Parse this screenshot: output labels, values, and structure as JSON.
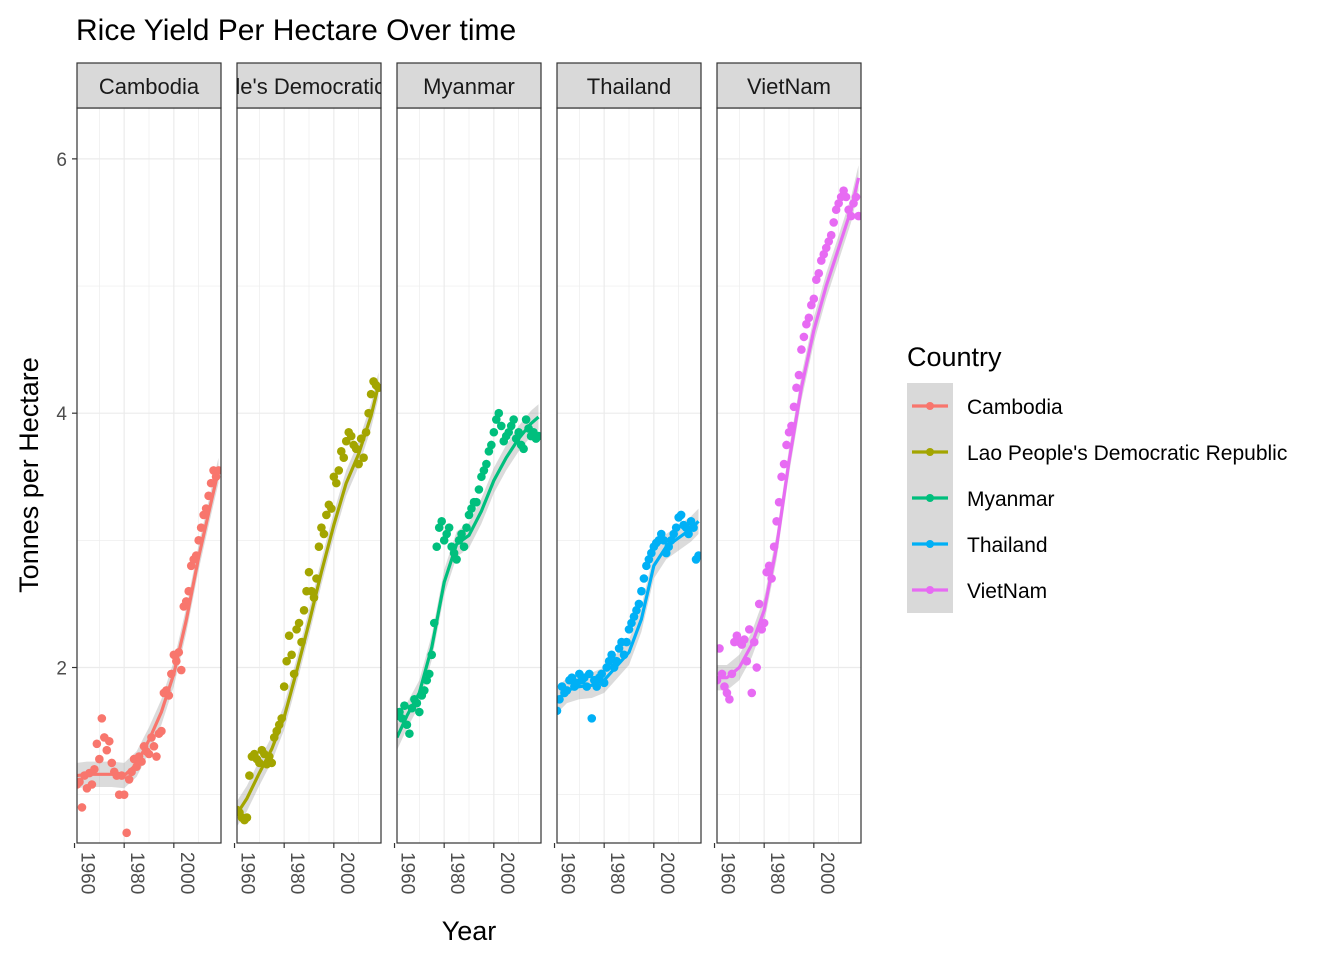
{
  "chart_data": {
    "type": "scatter",
    "title": "Rice Yield Per Hectare Over time",
    "xlabel": "Year",
    "ylabel": "Tonnes per Hectare",
    "xlim": [
      1961,
      2019
    ],
    "ylim": [
      0.62,
      6.4
    ],
    "x_ticks": [
      1960,
      1980,
      2000
    ],
    "y_ticks": [
      2,
      4,
      6
    ],
    "x_tick_labels": [
      "1960",
      "1980",
      "2000"
    ],
    "y_tick_labels": [
      "2",
      "4",
      "6"
    ],
    "legend_title": "Country",
    "legend_position": "right",
    "facet_labels": [
      "Cambodia",
      "Lao People's Democratic Republic",
      "Myanmar",
      "Thailand",
      "VietNam"
    ],
    "trend": "loess smooth with grey confidence band",
    "grid": true,
    "series": [
      {
        "name": "Cambodia",
        "color": "#F8766D",
        "x": [
          1961,
          1962,
          1963,
          1964,
          1965,
          1966,
          1967,
          1968,
          1969,
          1970,
          1971,
          1972,
          1973,
          1974,
          1975,
          1976,
          1977,
          1978,
          1979,
          1980,
          1981,
          1982,
          1983,
          1984,
          1985,
          1986,
          1987,
          1988,
          1989,
          1990,
          1991,
          1992,
          1993,
          1994,
          1995,
          1996,
          1997,
          1998,
          1999,
          2000,
          2001,
          2002,
          2003,
          2004,
          2005,
          2006,
          2007,
          2008,
          2009,
          2010,
          2011,
          2012,
          2013,
          2014,
          2015,
          2016,
          2017,
          2018
        ],
        "y": [
          1.08,
          1.1,
          0.9,
          1.15,
          1.05,
          1.17,
          1.08,
          1.2,
          1.4,
          1.28,
          1.6,
          1.45,
          1.35,
          1.42,
          1.25,
          1.18,
          1.15,
          1.0,
          1.15,
          1.0,
          0.7,
          1.12,
          1.18,
          1.28,
          1.22,
          1.3,
          1.26,
          1.38,
          1.34,
          1.32,
          1.45,
          1.38,
          1.3,
          1.48,
          1.5,
          1.8,
          1.82,
          1.78,
          1.95,
          2.1,
          2.05,
          2.12,
          1.98,
          2.48,
          2.52,
          2.6,
          2.8,
          2.85,
          2.88,
          3.0,
          3.1,
          3.2,
          3.25,
          3.35,
          3.45,
          3.55,
          3.5,
          3.55
        ],
        "smooth": [
          [
            1961,
            1.15
          ],
          [
            1965,
            1.16
          ],
          [
            1970,
            1.16
          ],
          [
            1975,
            1.16
          ],
          [
            1980,
            1.15
          ],
          [
            1985,
            1.24
          ],
          [
            1990,
            1.43
          ],
          [
            1995,
            1.65
          ],
          [
            2000,
            1.95
          ],
          [
            2005,
            2.37
          ],
          [
            2010,
            2.87
          ],
          [
            2015,
            3.3
          ],
          [
            2018,
            3.55
          ]
        ]
      },
      {
        "name": "Lao People's Democratic Republic",
        "color": "#A3A500",
        "x": [
          1961,
          1962,
          1963,
          1964,
          1965,
          1966,
          1967,
          1968,
          1969,
          1970,
          1971,
          1972,
          1973,
          1974,
          1975,
          1976,
          1977,
          1978,
          1979,
          1980,
          1981,
          1982,
          1983,
          1984,
          1985,
          1986,
          1987,
          1988,
          1989,
          1990,
          1991,
          1992,
          1993,
          1994,
          1995,
          1996,
          1997,
          1998,
          1999,
          2000,
          2001,
          2002,
          2003,
          2004,
          2005,
          2006,
          2007,
          2008,
          2009,
          2010,
          2011,
          2012,
          2013,
          2014,
          2015,
          2016,
          2017,
          2018
        ],
        "y": [
          0.88,
          0.86,
          0.82,
          0.8,
          0.82,
          1.15,
          1.3,
          1.32,
          1.28,
          1.25,
          1.35,
          1.32,
          1.24,
          1.3,
          1.25,
          1.45,
          1.5,
          1.55,
          1.6,
          1.85,
          2.05,
          2.25,
          2.1,
          1.95,
          2.3,
          2.35,
          2.2,
          2.45,
          2.6,
          2.75,
          2.6,
          2.55,
          2.7,
          2.95,
          3.1,
          3.05,
          3.2,
          3.28,
          3.25,
          3.5,
          3.45,
          3.55,
          3.7,
          3.65,
          3.78,
          3.85,
          3.82,
          3.75,
          3.72,
          3.6,
          3.8,
          3.65,
          3.85,
          4.0,
          4.15,
          4.25,
          4.22,
          4.2
        ],
        "smooth": [
          [
            1961,
            0.85
          ],
          [
            1965,
            0.97
          ],
          [
            1970,
            1.17
          ],
          [
            1975,
            1.36
          ],
          [
            1980,
            1.61
          ],
          [
            1985,
            1.97
          ],
          [
            1990,
            2.35
          ],
          [
            1995,
            2.75
          ],
          [
            2000,
            3.12
          ],
          [
            2005,
            3.45
          ],
          [
            2010,
            3.68
          ],
          [
            2015,
            3.98
          ],
          [
            2018,
            4.22
          ]
        ]
      },
      {
        "name": "Myanmar",
        "color": "#00BF7D",
        "x": [
          1961,
          1962,
          1963,
          1964,
          1965,
          1966,
          1967,
          1968,
          1969,
          1970,
          1971,
          1972,
          1973,
          1974,
          1975,
          1976,
          1977,
          1978,
          1979,
          1980,
          1981,
          1982,
          1983,
          1984,
          1985,
          1986,
          1987,
          1988,
          1989,
          1990,
          1991,
          1992,
          1993,
          1994,
          1995,
          1996,
          1997,
          1998,
          1999,
          2000,
          2001,
          2002,
          2003,
          2004,
          2005,
          2006,
          2007,
          2008,
          2009,
          2010,
          2011,
          2012,
          2013,
          2014,
          2015,
          2016,
          2017,
          2018
        ],
        "y": [
          1.62,
          1.65,
          1.6,
          1.7,
          1.55,
          1.48,
          1.68,
          1.75,
          1.72,
          1.65,
          1.78,
          1.82,
          1.9,
          1.95,
          2.1,
          2.35,
          2.95,
          3.1,
          3.15,
          3.0,
          3.05,
          3.1,
          2.95,
          2.9,
          2.85,
          3.0,
          3.05,
          2.95,
          3.1,
          3.2,
          3.25,
          3.3,
          3.3,
          3.4,
          3.5,
          3.55,
          3.6,
          3.7,
          3.75,
          3.85,
          3.95,
          4.0,
          3.9,
          3.78,
          3.82,
          3.85,
          3.9,
          3.95,
          3.8,
          3.85,
          3.75,
          3.72,
          3.95,
          3.88,
          3.82,
          3.85,
          3.8,
          3.82
        ],
        "smooth": [
          [
            1961,
            1.45
          ],
          [
            1965,
            1.62
          ],
          [
            1970,
            1.8
          ],
          [
            1975,
            2.16
          ],
          [
            1980,
            2.67
          ],
          [
            1985,
            2.97
          ],
          [
            1990,
            3.04
          ],
          [
            1995,
            3.23
          ],
          [
            2000,
            3.47
          ],
          [
            2005,
            3.65
          ],
          [
            2010,
            3.8
          ],
          [
            2015,
            3.92
          ],
          [
            2018,
            3.97
          ]
        ]
      },
      {
        "name": "Thailand",
        "color": "#00B0F6",
        "x": [
          1961,
          1962,
          1963,
          1964,
          1965,
          1966,
          1967,
          1968,
          1969,
          1970,
          1971,
          1972,
          1973,
          1974,
          1975,
          1976,
          1977,
          1978,
          1979,
          1980,
          1981,
          1982,
          1983,
          1984,
          1985,
          1986,
          1987,
          1988,
          1989,
          1990,
          1991,
          1992,
          1993,
          1994,
          1995,
          1996,
          1997,
          1998,
          1999,
          2000,
          2001,
          2002,
          2003,
          2004,
          2005,
          2006,
          2007,
          2008,
          2009,
          2010,
          2011,
          2012,
          2013,
          2014,
          2015,
          2016,
          2017,
          2018
        ],
        "y": [
          1.66,
          1.75,
          1.85,
          1.8,
          1.82,
          1.9,
          1.92,
          1.85,
          1.88,
          1.95,
          1.9,
          1.92,
          1.85,
          1.95,
          1.6,
          1.9,
          1.85,
          1.92,
          1.95,
          1.88,
          2.0,
          2.05,
          2.1,
          2.0,
          2.05,
          2.15,
          2.2,
          2.1,
          2.2,
          2.3,
          2.35,
          2.4,
          2.45,
          2.5,
          2.6,
          2.7,
          2.8,
          2.85,
          2.9,
          2.95,
          2.98,
          3.0,
          3.05,
          3.0,
          2.9,
          2.95,
          3.0,
          3.05,
          3.1,
          3.18,
          3.2,
          3.12,
          3.1,
          3.05,
          3.15,
          3.1,
          2.85,
          2.88
        ],
        "smooth": [
          [
            1961,
            1.74
          ],
          [
            1965,
            1.82
          ],
          [
            1970,
            1.85
          ],
          [
            1975,
            1.86
          ],
          [
            1980,
            1.9
          ],
          [
            1985,
            2.01
          ],
          [
            1990,
            2.12
          ],
          [
            1995,
            2.38
          ],
          [
            2000,
            2.8
          ],
          [
            2005,
            2.95
          ],
          [
            2010,
            3.02
          ],
          [
            2015,
            3.09
          ],
          [
            2018,
            3.15
          ]
        ]
      },
      {
        "name": "VietNam",
        "color": "#E76BF3",
        "x": [
          1961,
          1962,
          1963,
          1964,
          1965,
          1966,
          1967,
          1968,
          1969,
          1970,
          1971,
          1972,
          1973,
          1974,
          1975,
          1976,
          1977,
          1978,
          1979,
          1980,
          1981,
          1982,
          1983,
          1984,
          1985,
          1986,
          1987,
          1988,
          1989,
          1990,
          1991,
          1992,
          1993,
          1994,
          1995,
          1996,
          1997,
          1998,
          1999,
          2000,
          2001,
          2002,
          2003,
          2004,
          2005,
          2006,
          2007,
          2008,
          2009,
          2010,
          2011,
          2012,
          2013,
          2014,
          2015,
          2016,
          2017,
          2018
        ],
        "y": [
          1.9,
          2.15,
          1.95,
          1.85,
          1.8,
          1.75,
          1.95,
          2.2,
          2.25,
          2.2,
          2.18,
          2.22,
          2.05,
          2.3,
          1.8,
          2.2,
          2.0,
          2.5,
          2.3,
          2.35,
          2.75,
          2.8,
          2.7,
          2.95,
          3.15,
          3.3,
          3.5,
          3.6,
          3.75,
          3.85,
          3.9,
          4.05,
          4.2,
          4.3,
          4.5,
          4.6,
          4.7,
          4.75,
          4.85,
          4.9,
          5.05,
          5.1,
          5.2,
          5.25,
          5.3,
          5.35,
          5.4,
          5.5,
          5.6,
          5.65,
          5.7,
          5.75,
          5.7,
          5.6,
          5.55,
          5.65,
          5.7,
          5.55
        ],
        "smooth": [
          [
            1961,
            1.92
          ],
          [
            1965,
            1.92
          ],
          [
            1970,
            2.0
          ],
          [
            1975,
            2.18
          ],
          [
            1980,
            2.45
          ],
          [
            1985,
            2.95
          ],
          [
            1990,
            3.62
          ],
          [
            1995,
            4.2
          ],
          [
            2000,
            4.65
          ],
          [
            2005,
            5.0
          ],
          [
            2010,
            5.3
          ],
          [
            2015,
            5.6
          ],
          [
            2018,
            5.85
          ]
        ]
      }
    ]
  }
}
